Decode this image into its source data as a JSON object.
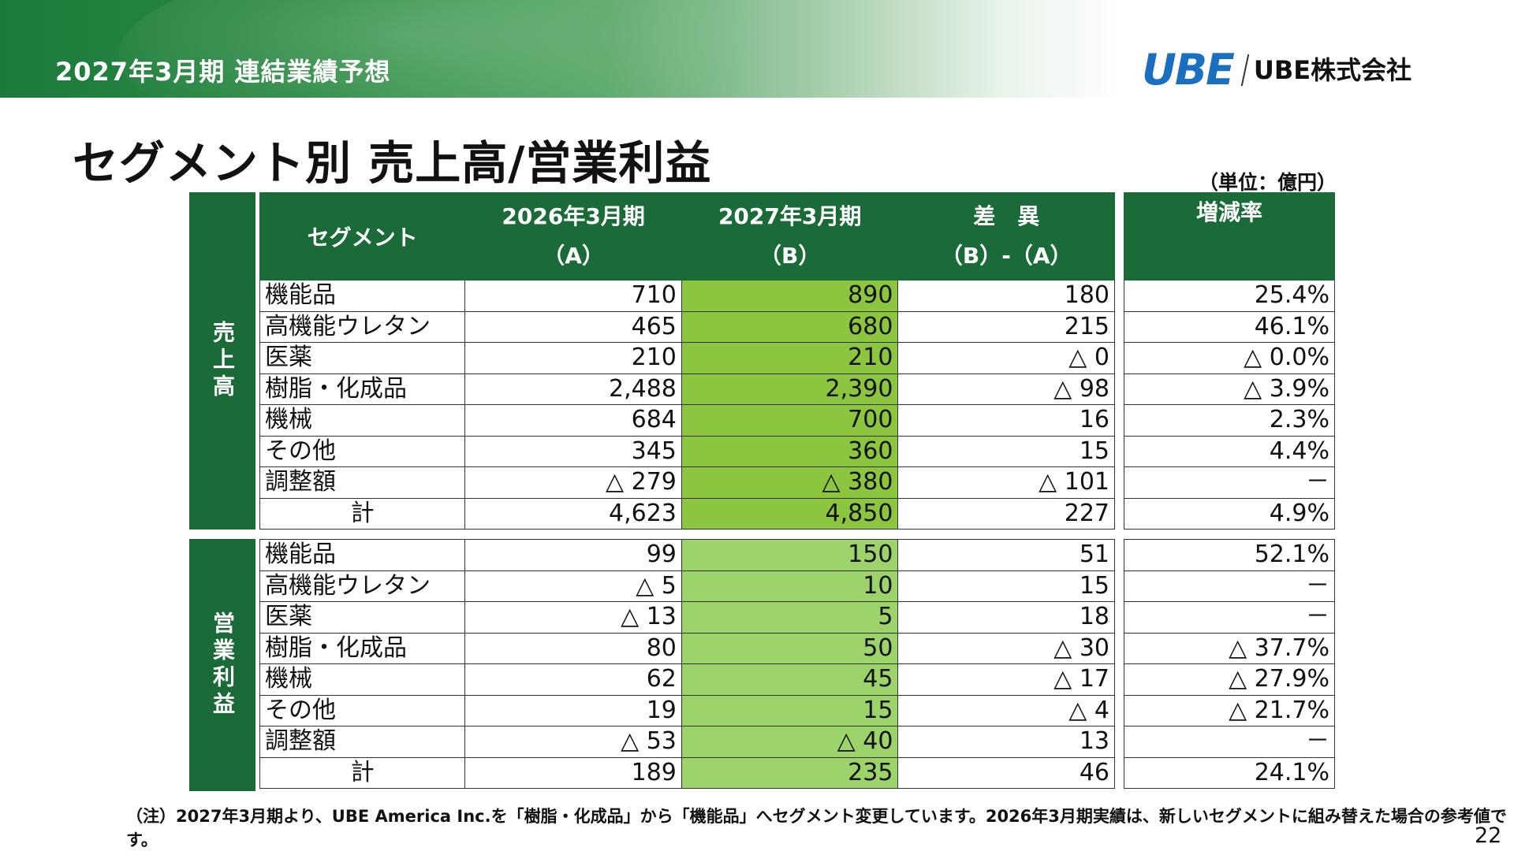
{
  "header": {
    "banner_title": "2027年3月期 連結業績予想",
    "logo_mark": "UBE",
    "logo_text": "UBE株式会社"
  },
  "title": "セグメント別 売上高/営業利益",
  "unit": "（単位：億円）",
  "table": {
    "headers": {
      "segment": "セグメント",
      "col_a_l1": "2026年3月期",
      "col_a_l2": "（A）",
      "col_b_l1": "2027年3月期",
      "col_b_l2": "（B）",
      "diff_l1": "差　異",
      "diff_l2": "（B）-（A）",
      "rate": "増減率"
    },
    "sales_label": "売上高",
    "profit_label": "営業利益",
    "sales": [
      {
        "name": "機能品",
        "a": "710",
        "b": "890",
        "diff": "180",
        "rate": "25.4%"
      },
      {
        "name": "高機能ウレタン",
        "a": "465",
        "b": "680",
        "diff": "215",
        "rate": "46.1%"
      },
      {
        "name": "医薬",
        "a": "210",
        "b": "210",
        "diff": "△ 0",
        "rate": "△ 0.0%"
      },
      {
        "name": "樹脂・化成品",
        "a": "2,488",
        "b": "2,390",
        "diff": "△ 98",
        "rate": "△ 3.9%"
      },
      {
        "name": "機械",
        "a": "684",
        "b": "700",
        "diff": "16",
        "rate": "2.3%"
      },
      {
        "name": "その他",
        "a": "345",
        "b": "360",
        "diff": "15",
        "rate": "4.4%"
      },
      {
        "name": "調整額",
        "a": "△ 279",
        "b": "△ 380",
        "diff": "△ 101",
        "rate": "－"
      },
      {
        "name": "計",
        "a": "4,623",
        "b": "4,850",
        "diff": "227",
        "rate": "4.9%"
      }
    ],
    "profit": [
      {
        "name": "機能品",
        "a": "99",
        "b": "150",
        "diff": "51",
        "rate": "52.1%"
      },
      {
        "name": "高機能ウレタン",
        "a": "△ 5",
        "b": "10",
        "diff": "15",
        "rate": "－"
      },
      {
        "name": "医薬",
        "a": "△ 13",
        "b": "5",
        "diff": "18",
        "rate": "－"
      },
      {
        "name": "樹脂・化成品",
        "a": "80",
        "b": "50",
        "diff": "△ 30",
        "rate": "△ 37.7%"
      },
      {
        "name": "機械",
        "a": "62",
        "b": "45",
        "diff": "△ 17",
        "rate": "△ 27.9%"
      },
      {
        "name": "その他",
        "a": "19",
        "b": "15",
        "diff": "△ 4",
        "rate": "△ 21.7%"
      },
      {
        "name": "調整額",
        "a": "△ 53",
        "b": "△ 40",
        "diff": "13",
        "rate": "－"
      },
      {
        "name": "計",
        "a": "189",
        "b": "235",
        "diff": "46",
        "rate": "24.1%"
      }
    ]
  },
  "note": "（注）2027年3月期より、UBE America Inc.を「樹脂・化成品」から「機能品」へセグメント変更しています。2026年3月期実績は、新しいセグメントに組み替えた場合の参考値です。",
  "page_number": "22",
  "colors": {
    "header_green": "#1a6b37",
    "forecast_sales_green": "#8cc63f",
    "forecast_profit_green": "#9dd36b",
    "logo_blue": "#1a6fc0"
  }
}
